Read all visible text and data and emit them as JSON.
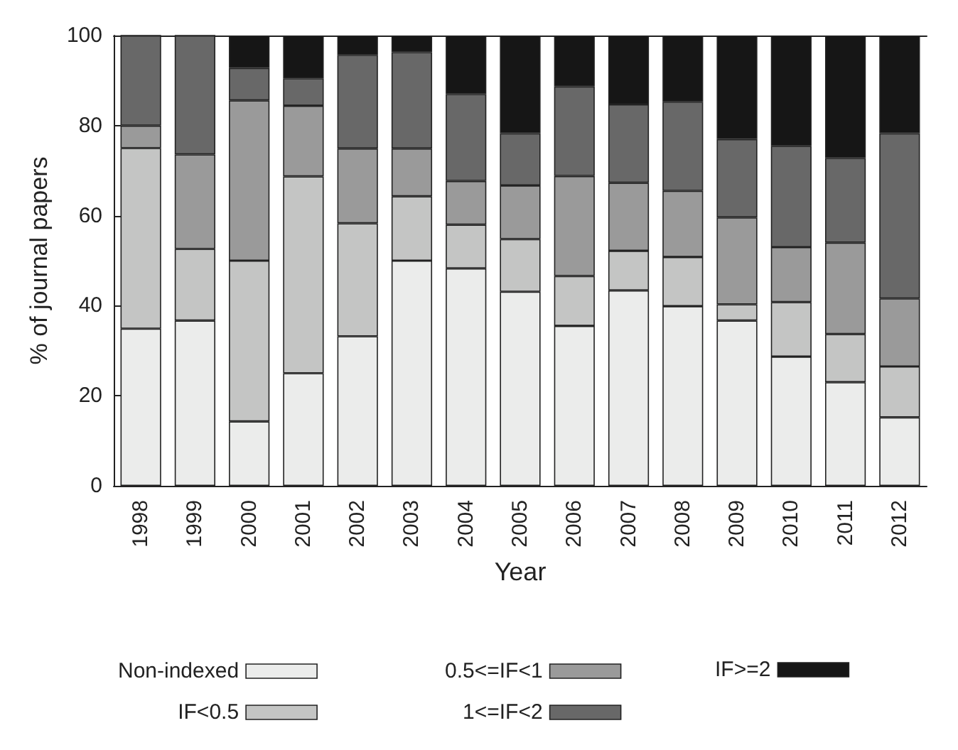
{
  "chart_data": {
    "type": "bar",
    "stacked": true,
    "xlabel": "Year",
    "ylabel": "% of journal papers",
    "categories": [
      "1998",
      "1999",
      "2000",
      "2001",
      "2002",
      "2003",
      "2004",
      "2005",
      "2006",
      "2007",
      "2008",
      "2009",
      "2010",
      "2011",
      "2012"
    ],
    "series": [
      {
        "name": "Non-indexed",
        "color": "#ebeceb",
        "values": [
          34.9,
          36.7,
          14.3,
          25,
          33.2,
          50,
          48.3,
          43.1,
          35.5,
          43.4,
          39.9,
          36.7,
          28.7,
          23,
          15.2
        ]
      },
      {
        "name": "IF<0.5",
        "color": "#c4c5c4",
        "values": [
          40.1,
          15.9,
          35.7,
          43.7,
          25.1,
          14.3,
          9.7,
          11.7,
          11.1,
          8.8,
          10.9,
          3.6,
          12.1,
          10.7,
          11.3
        ]
      },
      {
        "name": "0.5<=IF<1",
        "color": "#9a9a9a",
        "values": [
          5,
          21,
          35.6,
          15.7,
          16.6,
          10.6,
          9.7,
          11.9,
          22.2,
          15.1,
          14.7,
          19.3,
          12.2,
          20.3,
          15.1
        ]
      },
      {
        "name": "1<=IF<2",
        "color": "#686868",
        "values": [
          20,
          26.4,
          7.2,
          6.1,
          20.8,
          21.4,
          19.3,
          11.6,
          19.9,
          17.4,
          19.8,
          17.4,
          22.5,
          18.8,
          36.7
        ]
      },
      {
        "name": "IF>=2",
        "color": "#161616",
        "values": [
          0,
          0,
          7.2,
          9.5,
          4.3,
          3.7,
          13,
          21.7,
          11.3,
          15.3,
          14.7,
          23,
          24.5,
          27.2,
          21.7
        ]
      }
    ],
    "ylim": [
      0,
      100
    ],
    "yticks": [
      0,
      20,
      40,
      60,
      80,
      100
    ],
    "grid": false,
    "legend": "bottom"
  }
}
